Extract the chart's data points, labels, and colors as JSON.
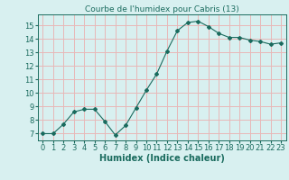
{
  "x": [
    0,
    1,
    2,
    3,
    4,
    5,
    6,
    7,
    8,
    9,
    10,
    11,
    12,
    13,
    14,
    15,
    16,
    17,
    18,
    19,
    20,
    21,
    22,
    23
  ],
  "y": [
    7.0,
    7.0,
    7.7,
    8.6,
    8.8,
    8.8,
    7.9,
    6.9,
    7.6,
    8.9,
    10.2,
    11.4,
    13.1,
    14.6,
    15.2,
    15.3,
    14.9,
    14.4,
    14.1,
    14.1,
    13.9,
    13.8,
    13.6,
    13.7
  ],
  "line_color": "#1a6b5e",
  "marker": "D",
  "marker_size": 2,
  "bg_color": "#d8f0f0",
  "grid_color": "#e8b8b8",
  "title": "Courbe de l'humidex pour Cabris (13)",
  "xlabel": "Humidex (Indice chaleur)",
  "ylabel": "",
  "xlim": [
    -0.5,
    23.5
  ],
  "ylim": [
    6.5,
    15.8
  ],
  "yticks": [
    7,
    8,
    9,
    10,
    11,
    12,
    13,
    14,
    15
  ],
  "xticks": [
    0,
    1,
    2,
    3,
    4,
    5,
    6,
    7,
    8,
    9,
    10,
    11,
    12,
    13,
    14,
    15,
    16,
    17,
    18,
    19,
    20,
    21,
    22,
    23
  ],
  "title_fontsize": 6.5,
  "label_fontsize": 7,
  "tick_fontsize": 6
}
